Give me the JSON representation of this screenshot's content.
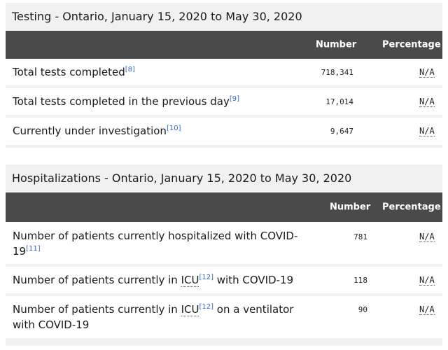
{
  "testing": {
    "title": "Testing - Ontario, January 15, 2020 to May 30, 2020",
    "col_number": "Number",
    "col_percentage": "Percentage",
    "rows": [
      {
        "label": "Total tests completed",
        "ref": "[8]",
        "number": "718,341",
        "percentage": "N/A"
      },
      {
        "label": "Total tests completed in the previous day",
        "ref": "[9]",
        "number": "17,014",
        "percentage": "N/A"
      },
      {
        "label": "Currently under investigation",
        "ref": "[10]",
        "number": "9,647",
        "percentage": "N/A"
      }
    ]
  },
  "hospitalizations": {
    "title": "Hospitalizations - Ontario, January 15, 2020 to May 30, 2020",
    "col_number": "Number",
    "col_percentage": "Percentage",
    "rows": [
      {
        "label_a": "Number of patients currently hospitalized with COVID-",
        "label_b": "19",
        "ref": "[11]",
        "number": "781",
        "percentage": "N/A"
      },
      {
        "label_a": "Number of patients currently in ",
        "abbr": "ICU",
        "ref": "[12]",
        "label_b": " with COVID-19",
        "number": "118",
        "percentage": "N/A"
      },
      {
        "label_a": "Number of patients currently in ",
        "abbr": "ICU",
        "ref": "[12]",
        "label_b": " on a ventilator",
        "label_c": "with COVID-19",
        "number": "90",
        "percentage": "N/A"
      }
    ]
  }
}
